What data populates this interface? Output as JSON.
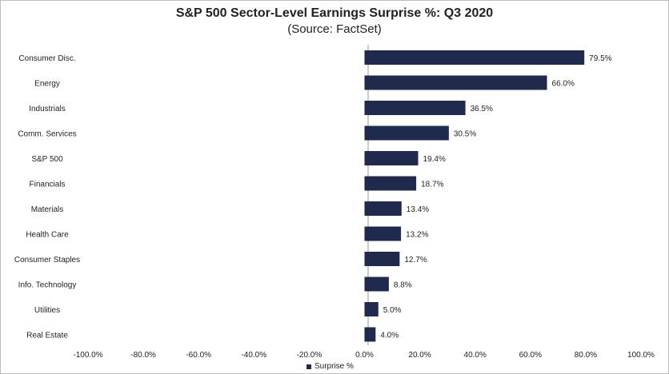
{
  "chart_data": {
    "type": "bar",
    "orientation": "horizontal",
    "title": "S&P 500 Sector-Level Earnings Surprise %: Q3 2020",
    "subtitle": "(Source: FactSet)",
    "categories": [
      "Consumer Disc.",
      "Energy",
      "Industrials",
      "Comm. Services",
      "S&P 500",
      "Financials",
      "Materials",
      "Health Care",
      "Consumer Staples",
      "Info. Technology",
      "Utilities",
      "Real Estate"
    ],
    "series": [
      {
        "name": "Surprise %",
        "values": [
          79.5,
          66.0,
          36.5,
          30.5,
          19.4,
          18.7,
          13.4,
          13.2,
          12.7,
          8.8,
          5.0,
          4.0
        ],
        "value_labels": [
          "79.5%",
          "66.0%",
          "36.5%",
          "30.5%",
          "19.4%",
          "18.7%",
          "13.4%",
          "13.2%",
          "12.7%",
          "8.8%",
          "5.0%",
          "4.0%"
        ],
        "color": "#1f2a4d"
      }
    ],
    "xlim": [
      -100,
      100
    ],
    "xticks": [
      -100,
      -80,
      -60,
      -40,
      -20,
      0,
      20,
      40,
      60,
      80,
      100
    ],
    "xtick_labels": [
      "-100.0%",
      "-80.0%",
      "-60.0%",
      "-40.0%",
      "-20.0%",
      "0.0%",
      "20.0%",
      "40.0%",
      "60.0%",
      "80.0%",
      "100.0%"
    ],
    "grid": false,
    "legend": "bottom"
  }
}
